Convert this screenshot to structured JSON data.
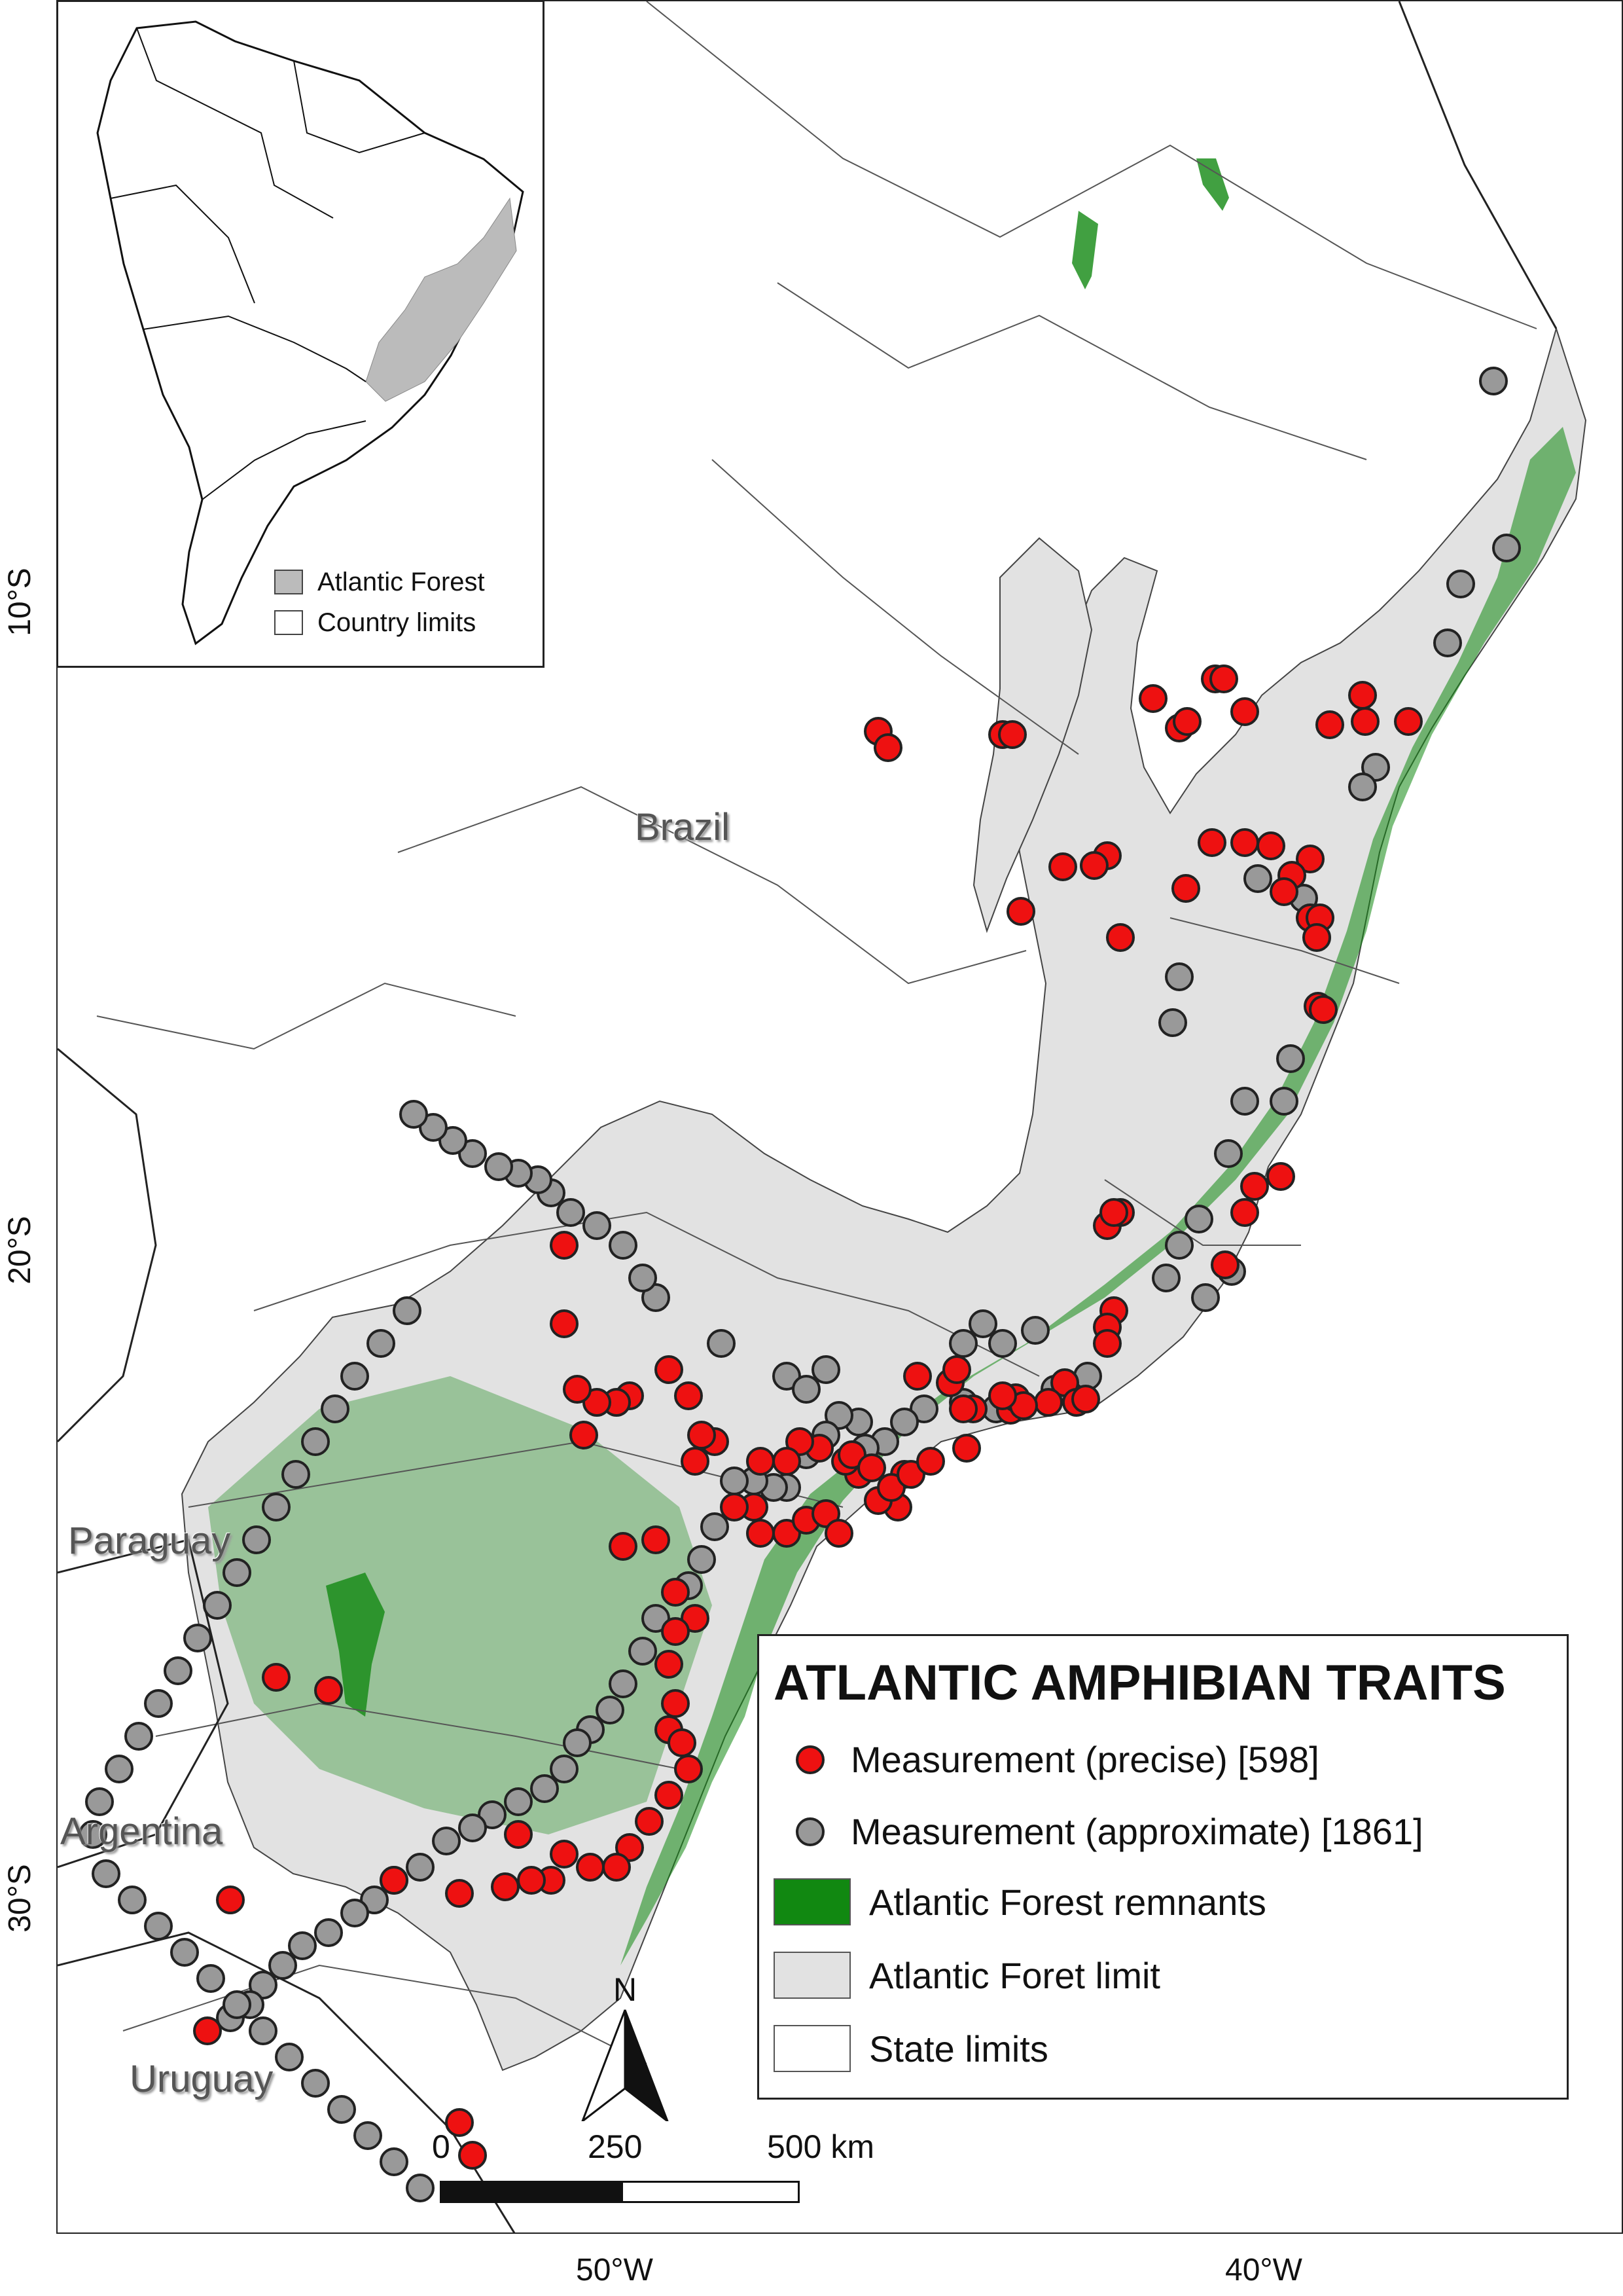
{
  "legend": {
    "title": "ATLANTIC AMPHIBIAN TRAITS",
    "items": [
      {
        "kind": "dot",
        "color": "#ee1111",
        "label": "Measurement (precise) [598]"
      },
      {
        "kind": "dot",
        "color": "#999999",
        "label": "Measurement (approximate) [1861]"
      },
      {
        "kind": "swatch",
        "color": "#118811",
        "label": "Atlantic Forest remnants"
      },
      {
        "kind": "swatch",
        "color": "#e2e2e2",
        "label": "Atlantic Foret limit"
      },
      {
        "kind": "swatch",
        "color": "#ffffff",
        "label": "State limits"
      }
    ]
  },
  "inset": {
    "legend": [
      {
        "color": "#bbbbbb",
        "label": "Atlantic Forest"
      },
      {
        "color": "#ffffff",
        "label": "Country limits"
      }
    ]
  },
  "countries": {
    "brazil": "Brazil",
    "paraguay": "Paraguay",
    "argentina": "Argentina",
    "uruguay": "Uruguay"
  },
  "axes": {
    "lat_ticks": [
      "10°S",
      "20°S",
      "30°S"
    ],
    "lon_ticks": [
      "50°W",
      "40°W"
    ]
  },
  "north_arrow": {
    "label": "N"
  },
  "scale_bar": {
    "labels": [
      "0",
      "250",
      "500 km"
    ]
  },
  "colors": {
    "precise": "#ee1111",
    "approximate": "#999999",
    "forest": "#118811",
    "limit": "#e2e2e2"
  }
}
